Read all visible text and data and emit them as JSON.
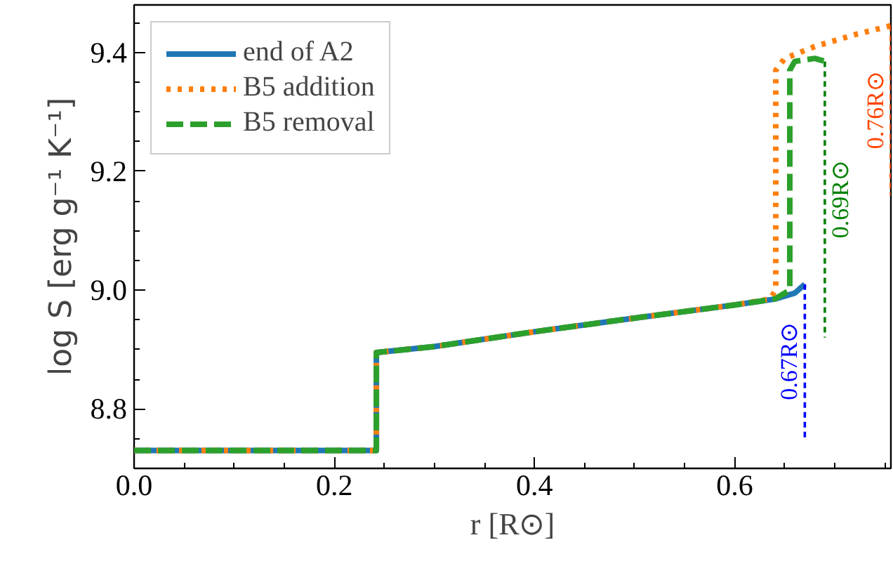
{
  "chart_data": {
    "type": "line",
    "xlabel": "r [R⊙]",
    "ylabel": "log S [erg g⁻¹ K⁻¹]",
    "xlim": [
      0,
      0.756
    ],
    "ylim": [
      8.7,
      9.48
    ],
    "xticks": [
      {
        "value": 0,
        "label": "0.0"
      },
      {
        "value": 0.05,
        "label": null
      },
      {
        "value": 0.1,
        "label": null
      },
      {
        "value": 0.15,
        "label": null
      },
      {
        "value": 0.2,
        "label": "0.2"
      },
      {
        "value": 0.25,
        "label": null
      },
      {
        "value": 0.3,
        "label": null
      },
      {
        "value": 0.35,
        "label": null
      },
      {
        "value": 0.4,
        "label": "0.4"
      },
      {
        "value": 0.45,
        "label": null
      },
      {
        "value": 0.5,
        "label": null
      },
      {
        "value": 0.55,
        "label": null
      },
      {
        "value": 0.6,
        "label": "0.6"
      },
      {
        "value": 0.65,
        "label": null
      },
      {
        "value": 0.7,
        "label": null
      },
      {
        "value": 0.75,
        "label": null
      }
    ],
    "yticks": [
      {
        "value": 8.7,
        "label": null
      },
      {
        "value": 8.75,
        "label": null
      },
      {
        "value": 8.8,
        "label": "8.8"
      },
      {
        "value": 8.85,
        "label": null
      },
      {
        "value": 8.9,
        "label": null
      },
      {
        "value": 8.95,
        "label": null
      },
      {
        "value": 9.0,
        "label": "9.0"
      },
      {
        "value": 9.05,
        "label": null
      },
      {
        "value": 9.1,
        "label": null
      },
      {
        "value": 9.15,
        "label": null
      },
      {
        "value": 9.2,
        "label": "9.2"
      },
      {
        "value": 9.25,
        "label": null
      },
      {
        "value": 9.3,
        "label": null
      },
      {
        "value": 9.35,
        "label": null
      },
      {
        "value": 9.4,
        "label": "9.4"
      },
      {
        "value": 9.45,
        "label": null
      }
    ],
    "grid": false,
    "legend": "top left",
    "series": [
      {
        "name": "end of A2",
        "color": "#1f77b4",
        "line_style": "solid",
        "x": [
          0,
          0.242,
          0.242,
          0.3,
          0.4,
          0.5,
          0.6,
          0.64,
          0.66,
          0.67
        ],
        "values": [
          8.73,
          8.73,
          8.895,
          8.905,
          8.93,
          8.953,
          8.975,
          8.985,
          8.995,
          9.01
        ]
      },
      {
        "name": "B5 addition",
        "color": "#ff7f0e",
        "line_style": "dotted",
        "x": [
          0,
          0.242,
          0.242,
          0.3,
          0.4,
          0.5,
          0.6,
          0.635,
          0.641,
          0.641,
          0.65,
          0.68,
          0.72,
          0.756
        ],
        "values": [
          8.73,
          8.73,
          8.895,
          8.905,
          8.93,
          8.953,
          8.975,
          8.985,
          9.0,
          9.37,
          9.39,
          9.41,
          9.43,
          9.445
        ]
      },
      {
        "name": "B5 removal",
        "color": "#2ca02c",
        "line_style": "dashed",
        "x": [
          0,
          0.242,
          0.242,
          0.3,
          0.4,
          0.5,
          0.6,
          0.64,
          0.655,
          0.655,
          0.66,
          0.68,
          0.69
        ],
        "values": [
          8.73,
          8.73,
          8.895,
          8.905,
          8.93,
          8.953,
          8.975,
          8.985,
          9.0,
          9.37,
          9.385,
          9.39,
          9.385
        ]
      },
      {
        "name": "0.67R⊙",
        "color": "#0000ff",
        "line_style": "dashed",
        "x": [
          0.67,
          0.67
        ],
        "values": [
          9.01,
          8.75
        ]
      },
      {
        "name": "0.69R⊙",
        "color": "#008000",
        "line_style": "dashed",
        "x": [
          0.69,
          0.69
        ],
        "values": [
          9.385,
          8.92
        ]
      },
      {
        "name": "0.76R⊙",
        "color": "#ff4500",
        "line_style": "dashed",
        "x": [
          0.756,
          0.756
        ],
        "values": [
          9.445,
          9.16
        ]
      }
    ]
  }
}
